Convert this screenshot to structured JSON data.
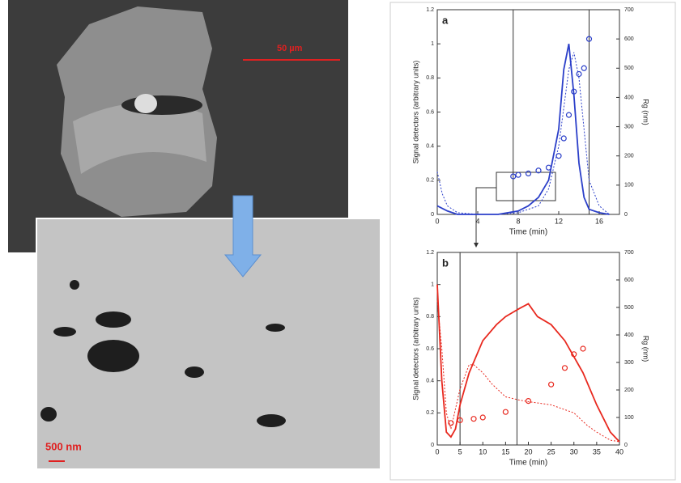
{
  "images": {
    "sem_scale_label": "50 µm",
    "tem_scale_label": "500 nm"
  },
  "chart_data": [
    {
      "type": "line",
      "panel_label": "a",
      "x_label": "Time (min)",
      "y_label": "Signal detectors (arbitrary units)",
      "y2_label": "Rg (nm)",
      "xlim": [
        0,
        18
      ],
      "xticks": [
        0,
        4,
        8,
        12,
        16
      ],
      "ylim": [
        0,
        1.2
      ],
      "yticks": [
        0,
        0.2,
        0.4,
        0.6,
        0.8,
        1,
        1.2
      ],
      "y2lim": [
        0,
        700
      ],
      "y2ticks": [
        0,
        100,
        200,
        300,
        400,
        500,
        600,
        700
      ],
      "vlines": [
        7.5,
        15
      ],
      "series": [
        {
          "color": "#2b3fc9",
          "style": "solid",
          "x": [
            0,
            1,
            2,
            4,
            6,
            8,
            9,
            10,
            11,
            12,
            12.5,
            13,
            13.5,
            14,
            14.5,
            15,
            16,
            17
          ],
          "values": [
            0.05,
            0.02,
            0,
            0,
            0,
            0.02,
            0.05,
            0.1,
            0.2,
            0.5,
            0.85,
            1.0,
            0.7,
            0.3,
            0.1,
            0.03,
            0.01,
            0
          ]
        },
        {
          "color": "#2b3fc9",
          "style": "dotted",
          "x": [
            0,
            0.5,
            1,
            2,
            4,
            6,
            8,
            10,
            11,
            12,
            13,
            13.5,
            14,
            14.5,
            15,
            16,
            17
          ],
          "values": [
            0.25,
            0.12,
            0.05,
            0.01,
            0,
            0,
            0.01,
            0.05,
            0.15,
            0.4,
            0.85,
            0.95,
            0.8,
            0.5,
            0.2,
            0.05,
            0
          ]
        },
        {
          "color": "#2b3fc9",
          "style": "markers",
          "axis": "y2",
          "x": [
            7.5,
            8,
            9,
            10,
            11,
            12,
            12.5,
            13,
            13.5,
            14,
            14.5,
            15
          ],
          "values": [
            130,
            135,
            140,
            150,
            160,
            200,
            260,
            340,
            420,
            480,
            500,
            600
          ]
        }
      ]
    },
    {
      "type": "line",
      "panel_label": "b",
      "x_label": "Time (min)",
      "y_label": "Signal detectors (arbitrary units)",
      "y2_label": "Rg (nm)",
      "xlim": [
        0,
        40
      ],
      "xticks": [
        0,
        5,
        10,
        15,
        20,
        25,
        30,
        35,
        40
      ],
      "ylim": [
        0,
        1.2
      ],
      "yticks": [
        0,
        0.2,
        0.4,
        0.6,
        0.8,
        1,
        1.2
      ],
      "y2lim": [
        0,
        700
      ],
      "y2ticks": [
        0,
        100,
        200,
        300,
        400,
        500,
        600,
        700
      ],
      "vlines": [
        5,
        17.5
      ],
      "series": [
        {
          "color": "#e8281e",
          "style": "solid",
          "x": [
            0,
            1,
            2,
            3,
            4,
            5,
            7,
            10,
            13,
            15,
            18,
            20,
            22,
            25,
            28,
            30,
            32,
            35,
            38,
            40
          ],
          "values": [
            1.0,
            0.4,
            0.08,
            0.05,
            0.1,
            0.25,
            0.45,
            0.65,
            0.75,
            0.8,
            0.85,
            0.88,
            0.8,
            0.75,
            0.65,
            0.55,
            0.45,
            0.25,
            0.08,
            0.02
          ]
        },
        {
          "color": "#e8281e",
          "style": "dotted",
          "x": [
            0,
            1,
            2,
            3,
            5,
            7,
            8,
            10,
            12,
            15,
            18,
            20,
            25,
            30,
            33,
            35,
            38,
            40
          ],
          "values": [
            0.9,
            0.6,
            0.2,
            0.1,
            0.35,
            0.5,
            0.5,
            0.45,
            0.38,
            0.3,
            0.28,
            0.27,
            0.25,
            0.2,
            0.12,
            0.08,
            0.03,
            0.02
          ]
        },
        {
          "color": "#e8281e",
          "style": "markers",
          "axis": "y2",
          "x": [
            3,
            5,
            8,
            10,
            15,
            20,
            25,
            28,
            30,
            32
          ],
          "values": [
            80,
            90,
            95,
            100,
            120,
            160,
            220,
            280,
            330,
            350
          ]
        }
      ]
    }
  ]
}
